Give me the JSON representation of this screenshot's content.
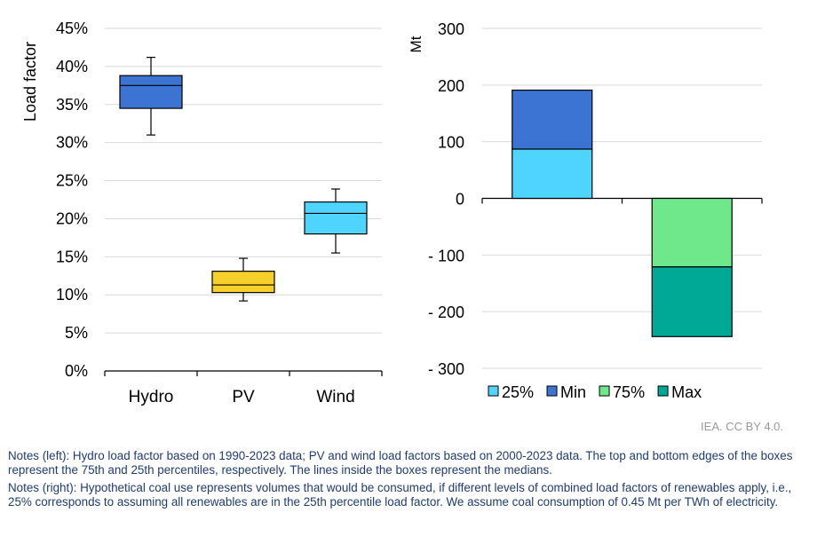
{
  "chart_data": [
    {
      "type": "box",
      "ylabel": "Load factor",
      "y_unit": "%",
      "ylim": [
        0,
        45
      ],
      "y_ticks": [
        "0%",
        "5%",
        "10%",
        "15%",
        "20%",
        "25%",
        "30%",
        "35%",
        "40%",
        "45%"
      ],
      "categories": [
        "Hydro",
        "PV",
        "Wind"
      ],
      "boxes": [
        {
          "category": "Hydro",
          "min": 31.0,
          "q1": 34.5,
          "median": 37.5,
          "q3": 38.8,
          "max": 41.2,
          "color": "#3b74d2"
        },
        {
          "category": "PV",
          "min": 9.2,
          "q1": 10.3,
          "median": 11.3,
          "q3": 13.1,
          "max": 14.8,
          "color": "#f6cf2b"
        },
        {
          "category": "Wind",
          "min": 15.5,
          "q1": 18.0,
          "median": 20.7,
          "q3": 22.2,
          "max": 23.9,
          "color": "#4fd4ff"
        }
      ],
      "grid": true
    },
    {
      "type": "bar",
      "stacked": true,
      "ylabel": "Mt",
      "ylim": [
        -300,
        300
      ],
      "y_ticks": [
        "300",
        "200",
        "100",
        "0",
        "- 100",
        "- 200",
        "- 300"
      ],
      "series": [
        {
          "name": "25%",
          "values": [
            87,
            0
          ],
          "color": "#4fd4ff"
        },
        {
          "name": "Min",
          "values": [
            104,
            0
          ],
          "color": "#3b74d2"
        },
        {
          "name": "75%",
          "values": [
            0,
            -121
          ],
          "color": "#6ee88b"
        },
        {
          "name": "Max",
          "values": [
            0,
            -123
          ],
          "color": "#00a896"
        }
      ],
      "legend_position": "bottom",
      "grid": true
    }
  ],
  "credit": "IEA. CC BY 4.0.",
  "notes": [
    "Notes (left): Hydro load factor based on 1990-2023 data; PV and wind load factors based on 2000-2023 data. The top and bottom edges of the boxes represent the 75th and 25th percentiles, respectively. The lines inside the boxes represent the medians.",
    "Notes (right): Hypothetical coal use represents volumes that would be consumed, if different levels of combined load factors of renewables apply, i.e., 25% corresponds to assuming all renewables are in the 25th percentile load factor. We assume coal consumption of 0.45 Mt per TWh of electricity."
  ]
}
